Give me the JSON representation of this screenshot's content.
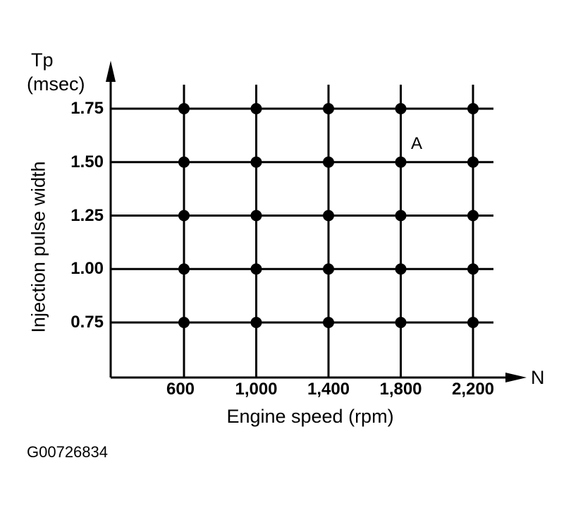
{
  "chart_data": {
    "type": "scatter",
    "title": "",
    "xlabel": "Engine speed (rpm)",
    "ylabel": "Injection pulse width",
    "y_axis_title": "Tp",
    "y_axis_unit": "(msec)",
    "x_axis_symbol": "N",
    "x_ticks": [
      "600",
      "1,000",
      "1,400",
      "1,800",
      "2,200"
    ],
    "y_ticks": [
      "1.75",
      "1.50",
      "1.25",
      "1.00",
      "0.75"
    ],
    "x_values": [
      600,
      1000,
      1400,
      1800,
      2200
    ],
    "y_values": [
      1.75,
      1.5,
      1.25,
      1.0,
      0.75
    ],
    "grid": true,
    "points": "all combinations of x_values and y_values (25 grid points)",
    "annotations": [
      {
        "text": "A",
        "x": 1800,
        "y": 1.5
      }
    ],
    "color": "#000000"
  },
  "figure_id": "G00726834"
}
